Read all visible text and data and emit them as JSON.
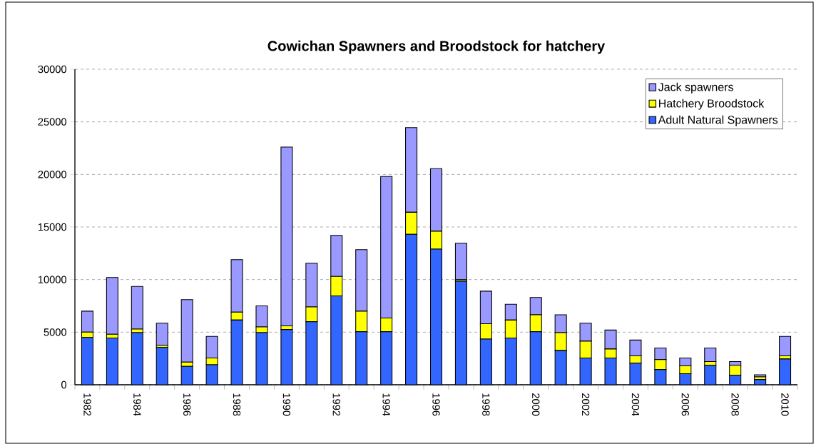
{
  "chart_data": {
    "type": "bar",
    "title": "Cowichan Spawners and Broodstock for hatchery",
    "stacked": true,
    "categories": [
      "1982",
      null,
      "1984",
      null,
      "1986",
      null,
      "1988",
      null,
      "1990",
      null,
      "1992",
      null,
      "1994",
      null,
      "1996",
      null,
      "1998",
      null,
      "2000",
      null,
      "2002",
      null,
      "2004",
      null,
      "2006",
      null,
      "2008",
      null,
      "2010"
    ],
    "series": [
      {
        "name": "Adult Natural Spawners",
        "color": "#3366ff",
        "values": [
          4500,
          4450,
          4950,
          3550,
          1750,
          1900,
          6150,
          4950,
          5250,
          6000,
          8450,
          5050,
          5050,
          14300,
          12900,
          9850,
          4350,
          4450,
          5050,
          3250,
          2550,
          2550,
          2050,
          1450,
          1050,
          1850,
          900,
          500,
          2450
        ]
      },
      {
        "name": "Hatchery Broodstock",
        "color": "#ffff00",
        "values": [
          500,
          350,
          350,
          200,
          400,
          650,
          750,
          550,
          350,
          1400,
          1850,
          1950,
          1300,
          2100,
          1700,
          150,
          1450,
          1700,
          1600,
          1700,
          1600,
          850,
          700,
          950,
          750,
          350,
          950,
          250,
          300
        ]
      },
      {
        "name": "Jack spawners",
        "color": "#9999ff",
        "values": [
          2000,
          5400,
          4050,
          2100,
          5950,
          2050,
          5000,
          2000,
          17000,
          4150,
          3900,
          5850,
          13450,
          8050,
          5950,
          3450,
          3100,
          1500,
          1650,
          1700,
          1700,
          1800,
          1500,
          1100,
          750,
          1300,
          350,
          200,
          1850
        ]
      }
    ],
    "ylim": [
      0,
      30000
    ],
    "yticks": [
      0,
      5000,
      10000,
      15000,
      20000,
      25000,
      30000
    ],
    "grid": "y",
    "legend": "top right"
  }
}
